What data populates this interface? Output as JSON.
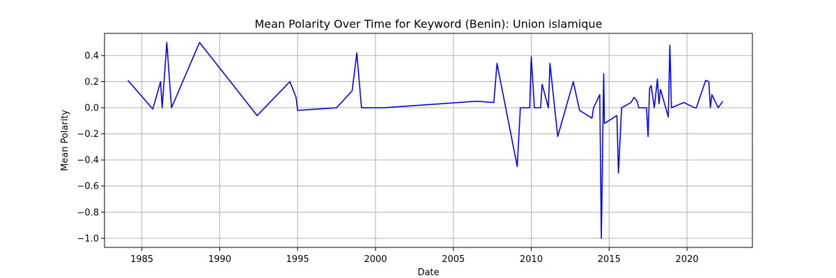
{
  "chart_data": {
    "type": "line",
    "title": "Mean Polarity Over Time for Keyword (Benin): Union islamique",
    "xlabel": "Date",
    "ylabel": "Mean Polarity",
    "xlim": [
      1982.6,
      2024.2
    ],
    "ylim": [
      -1.07,
      0.57
    ],
    "xticks": [
      1985,
      1990,
      1995,
      2000,
      2005,
      2010,
      2015,
      2020
    ],
    "yticks": [
      -1.0,
      -0.8,
      -0.6,
      -0.4,
      -0.2,
      0.0,
      0.2,
      0.4
    ],
    "ytick_labels": [
      "−1.0",
      "−0.8",
      "−0.6",
      "−0.4",
      "−0.2",
      "0.0",
      "0.2",
      "0.4"
    ],
    "grid": true,
    "series": [
      {
        "color": "#0000ff",
        "x": [
          1984.1,
          1985.7,
          1986.2,
          1986.3,
          1986.6,
          1986.9,
          1988.7,
          1992.4,
          1994.5,
          1994.9,
          1995.0,
          1997.5,
          1998.5,
          1998.8,
          1999.1,
          2000.5,
          2006.5,
          2007.6,
          2007.8,
          2009.1,
          2009.3,
          2009.9,
          2010.0,
          2010.2,
          2010.6,
          2010.7,
          2011.1,
          2011.2,
          2011.7,
          2012.7,
          2013.1,
          2013.9,
          2014.0,
          2014.4,
          2014.5,
          2014.65,
          2014.7,
          2015.5,
          2015.6,
          2015.8,
          2016.4,
          2016.6,
          2016.8,
          2016.9,
          2017.4,
          2017.5,
          2017.6,
          2017.7,
          2017.9,
          2018.1,
          2018.2,
          2018.3,
          2018.8,
          2018.9,
          2019.0,
          2019.8,
          2020.5,
          2020.6,
          2021.2,
          2021.4,
          2021.5,
          2021.6,
          2022.0,
          2022.3
        ],
        "y": [
          0.21,
          -0.01,
          0.2,
          0.0,
          0.5,
          0.0,
          0.5,
          -0.06,
          0.2,
          0.08,
          -0.02,
          0.0,
          0.13,
          0.42,
          0.0,
          0.0,
          0.05,
          0.04,
          0.34,
          -0.45,
          0.0,
          0.0,
          0.39,
          0.0,
          0.0,
          0.18,
          0.0,
          0.34,
          -0.22,
          0.2,
          -0.02,
          -0.08,
          0.0,
          0.1,
          -1.0,
          0.26,
          -0.12,
          -0.06,
          -0.5,
          0.0,
          0.04,
          0.08,
          0.05,
          0.0,
          0.0,
          -0.22,
          0.15,
          0.17,
          0.0,
          0.22,
          0.03,
          0.14,
          -0.07,
          0.48,
          0.0,
          0.04,
          0.0,
          0.0,
          0.21,
          0.2,
          0.0,
          0.1,
          0.0,
          0.05
        ]
      }
    ]
  }
}
